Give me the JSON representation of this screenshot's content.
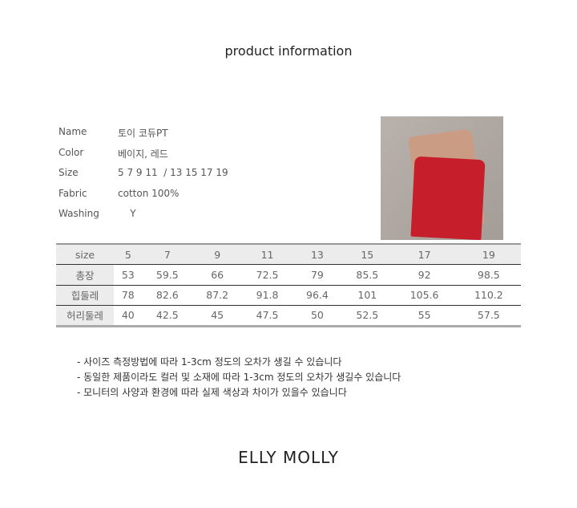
{
  "title": "product information",
  "info": [
    {
      "label": "Name",
      "value": "토이 코듀PT"
    },
    {
      "label": "Color",
      "value": "베이지, 레드"
    },
    {
      "label": "Size",
      "value": "5 7 9 11  / 13 15 17 19"
    },
    {
      "label": "Fabric",
      "value": "cotton 100%"
    },
    {
      "label": "Washing",
      "value": "    Y"
    }
  ],
  "table": {
    "header": [
      "size",
      "5",
      "7",
      "9",
      "11",
      "13",
      "15",
      "17",
      "19"
    ],
    "rows": [
      [
        "총장",
        "53",
        "59.5",
        "66",
        "72.5",
        "79",
        "85.5",
        "92",
        "98.5"
      ],
      [
        "힙둘레",
        "78",
        "82.6",
        "87.2",
        "91.8",
        "96.4",
        "101",
        "105.6",
        "110.2"
      ],
      [
        "허리둘레",
        "40",
        "42.5",
        "45",
        "47.5",
        "50",
        "52.5",
        "55",
        "57.5"
      ]
    ]
  },
  "notes": [
    "- 사이즈 측정방법에 따라 1-3cm 정도의 오차가 생길 수 있습니다",
    "- 동일한 제품이라도 컬러 및 소재에 따라 1-3cm 정도의 오차가 생길수 있습니다",
    "- 모니터의 사양과 환경에 따라 실제 색상과 차이가 있을수 있습니다"
  ],
  "brand": "ELLY MOLLY",
  "colors": {
    "beige": "#c99c83",
    "red": "#c61f2b"
  }
}
